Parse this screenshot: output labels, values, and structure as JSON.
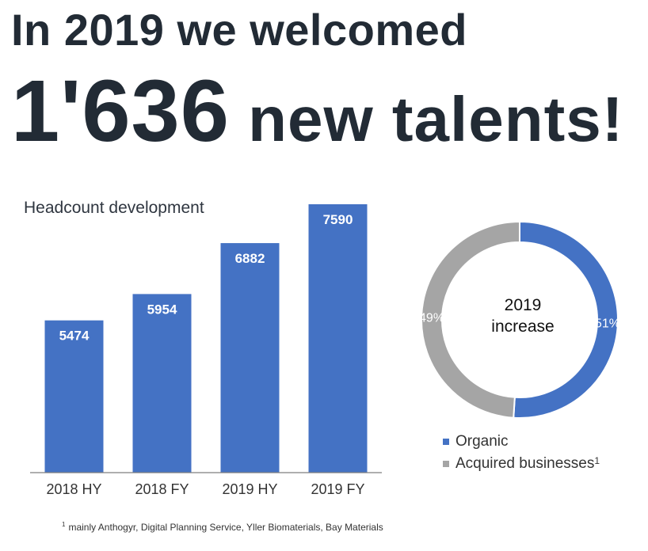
{
  "headline": {
    "line1": "In 2019 we welcomed",
    "number": "1'636",
    "rest": " new talents!"
  },
  "colors": {
    "organic": "#4472c4",
    "acquired": "#a5a5a5",
    "text": "#222b35"
  },
  "chart_data": [
    {
      "type": "bar",
      "title": "Headcount development",
      "categories": [
        "2018 HY",
        "2018 FY",
        "2019 HY",
        "2019 FY"
      ],
      "values": [
        5474,
        5954,
        6882,
        7590
      ],
      "data_labels": [
        "5474",
        "5954",
        "6882",
        "7590"
      ],
      "ylim": [
        2700,
        7590
      ],
      "grid": false,
      "color": "#4472c4"
    },
    {
      "type": "pie",
      "donut": true,
      "center_label": [
        "2019",
        "increase"
      ],
      "slices": [
        {
          "name": "Organic",
          "value": 51,
          "label": "51%",
          "color": "#4472c4"
        },
        {
          "name": "Acquired businesses",
          "value": 49,
          "label": "49%",
          "color": "#a5a5a5"
        }
      ],
      "legend": {
        "placement": "bottom",
        "entries": [
          {
            "label": "Organic",
            "sup": ""
          },
          {
            "label": "Acquired businesses",
            "sup": "1"
          }
        ]
      }
    }
  ],
  "footnote": {
    "mark": "1",
    "text": "mainly Anthogyr, Digital Planning Service, Yller Biomaterials, Bay Materials"
  }
}
